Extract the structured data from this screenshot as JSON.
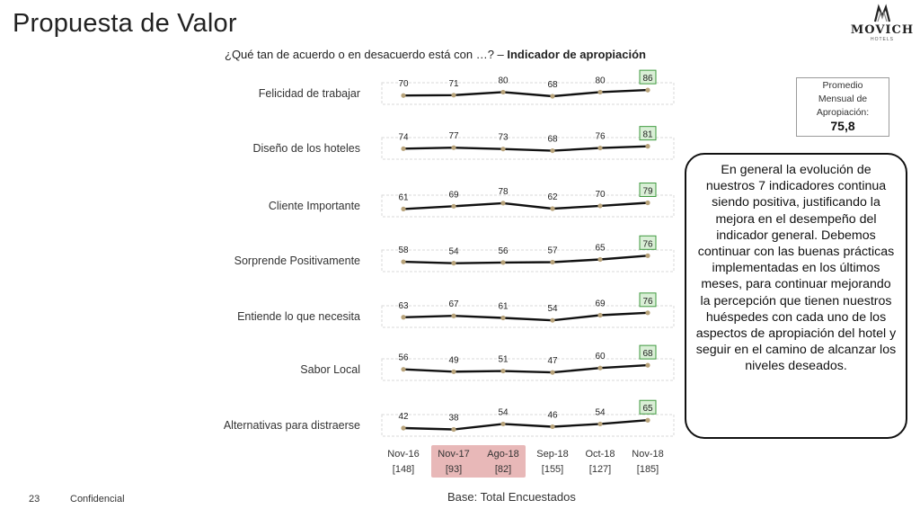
{
  "header": {
    "title": "Propuesta de Valor",
    "subtitle_prefix": "¿Qué tan de acuerdo o en desacuerdo está con …? – ",
    "subtitle_bold": "Indicador de apropiación"
  },
  "logo": {
    "name": "MOVICH",
    "sub": "HOTELS"
  },
  "kpi": {
    "label_lines": [
      "Promedio",
      "Mensual de",
      "Apropiación:"
    ],
    "value": "75,8"
  },
  "note": "En general la evolución de nuestros 7 indicadores continua siendo positiva, justificando la mejora en el desempeño del indicador general. Debemos continuar con las buenas prácticas implementadas en los últimos meses, para continuar mejorando la percepción que tienen nuestros huéspedes con cada uno de los aspectos de apropiación del hotel y seguir en el camino de alcanzar los niveles deseados.",
  "footer": {
    "page": "23",
    "confidential": "Confidencial",
    "base": "Base: Total Encuestados"
  },
  "colors": {
    "line": "#111111",
    "marker": "#b8a37a",
    "highlight_fill": "#e8b8b8",
    "last_box_fill": "#d9efd6",
    "last_box_border": "#3f9a3f"
  },
  "chart_data": {
    "type": "line",
    "x": [
      "Nov-16",
      "Nov-17",
      "Ago-18",
      "Sep-18",
      "Oct-18",
      "Nov-18"
    ],
    "x_sublabels": [
      "[148]",
      "[93]",
      "[82]",
      "[155]",
      "[127]",
      "[185]"
    ],
    "highlighted_x": [
      "Nov-17",
      "Ago-18"
    ],
    "series": [
      {
        "name": "Felicidad de trabajar",
        "values": [
          70,
          71,
          80,
          68,
          80,
          86
        ]
      },
      {
        "name": "Diseño de los hoteles",
        "values": [
          74,
          77,
          73,
          68,
          76,
          81
        ]
      },
      {
        "name": "Cliente Importante",
        "values": [
          61,
          69,
          78,
          62,
          70,
          79
        ]
      },
      {
        "name": "Sorprende Positivamente",
        "values": [
          58,
          54,
          56,
          57,
          65,
          76
        ]
      },
      {
        "name": "Entiende lo que necesita",
        "values": [
          63,
          67,
          61,
          54,
          69,
          76
        ]
      },
      {
        "name": "Sabor Local",
        "values": [
          56,
          49,
          51,
          47,
          60,
          68
        ]
      },
      {
        "name": "Alternativas para distraerse",
        "values": [
          42,
          38,
          54,
          46,
          54,
          65
        ]
      }
    ]
  }
}
